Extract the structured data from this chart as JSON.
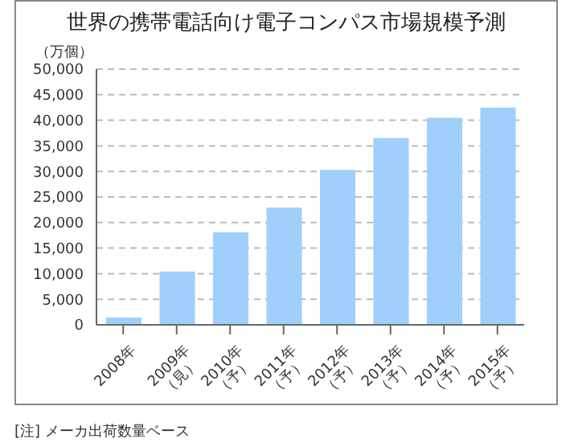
{
  "chart_data": {
    "type": "bar",
    "title": "世界の携帯電話向け電子コンパス市場規模予測",
    "ylabel": "（万個）",
    "categories": [
      "2008年",
      "2009年\n（見）",
      "2010年\n（予）",
      "2011年\n（予）",
      "2012年\n（予）",
      "2013年\n（予）",
      "2014年\n（予）",
      "2015年\n（予）"
    ],
    "values": [
      1400,
      10400,
      18100,
      22900,
      30300,
      36500,
      40500,
      42500
    ],
    "color": "#9fcffa",
    "ylim": [
      0,
      50000
    ],
    "yticks": [
      0,
      {
        "value": 5000,
        "label": "5,000"
      },
      {
        "value": 10000,
        "label": "10,000"
      },
      {
        "value": 15000,
        "label": "15,000"
      },
      {
        "value": 20000,
        "label": "20,000"
      },
      {
        "value": 25000,
        "label": "25,000"
      },
      {
        "value": 30000,
        "label": "30,000"
      },
      {
        "value": 35000,
        "label": "35,000"
      },
      {
        "value": 40000,
        "label": "40,000"
      },
      {
        "value": 45000,
        "label": "45,000"
      },
      {
        "value": 50000,
        "label": "50,000"
      }
    ],
    "grid": "y",
    "annotations": [
      "[注] メーカ出荷数量ベース"
    ]
  }
}
